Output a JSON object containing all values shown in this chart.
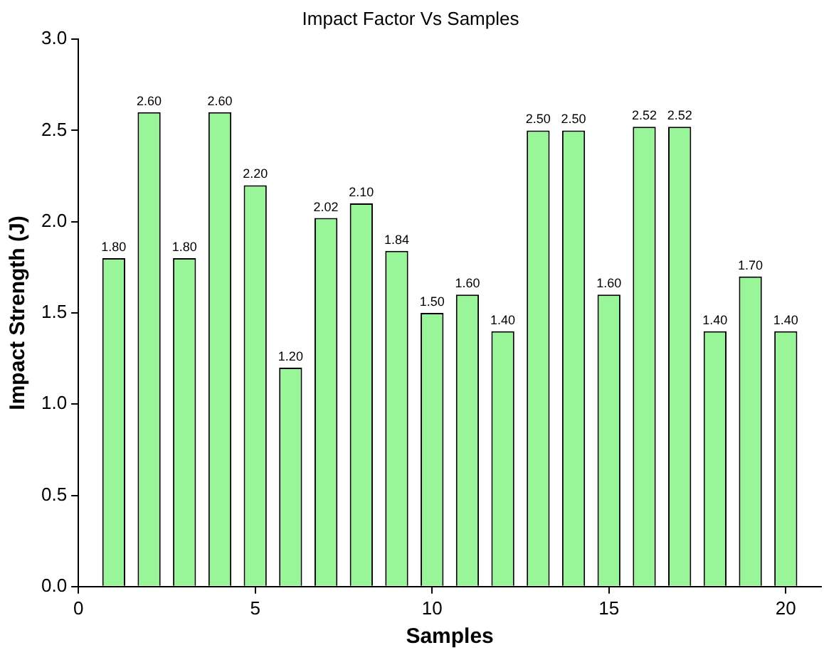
{
  "chart_data": {
    "type": "bar",
    "title": "Impact Factor Vs Samples",
    "xlabel": "Samples",
    "ylabel": "Impact Strength (J)",
    "x": [
      1,
      2,
      3,
      4,
      5,
      6,
      7,
      8,
      9,
      10,
      11,
      12,
      13,
      14,
      15,
      16,
      17,
      18,
      19,
      20
    ],
    "values": [
      1.8,
      2.6,
      1.8,
      2.6,
      2.2,
      1.2,
      2.02,
      2.1,
      1.84,
      1.5,
      1.6,
      1.4,
      2.5,
      2.5,
      1.6,
      2.52,
      2.52,
      1.4,
      1.7,
      1.4
    ],
    "value_labels": [
      "1.80",
      "2.60",
      "1.80",
      "2.60",
      "2.20",
      "1.20",
      "2.02",
      "2.10",
      "1.84",
      "1.50",
      "1.60",
      "1.40",
      "2.50",
      "2.50",
      "1.60",
      "2.52",
      "2.52",
      "1.40",
      "1.70",
      "1.40"
    ],
    "color": "#98f598",
    "xlim": [
      0,
      21
    ],
    "xticks": [
      0,
      5,
      10,
      15,
      20
    ],
    "ylim": [
      0,
      3
    ],
    "yticks": [
      {
        "value": 0,
        "label": "0.0"
      },
      {
        "value": 0.5,
        "label": "0.5"
      },
      {
        "value": 1,
        "label": "1.0"
      },
      {
        "value": 1.5,
        "label": "1.5"
      },
      {
        "value": 2,
        "label": "2.0"
      },
      {
        "value": 2.5,
        "label": "2.5"
      },
      {
        "value": 3,
        "label": "3.0"
      }
    ],
    "grid": false,
    "legend": false
  }
}
